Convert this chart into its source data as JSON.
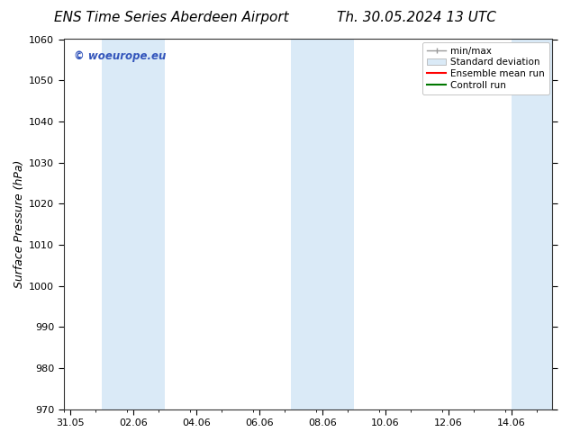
{
  "title_left": "ENS Time Series Aberdeen Airport",
  "title_right": "Th. 30.05.2024 13 UTC",
  "ylabel": "Surface Pressure (hPa)",
  "ylim": [
    970,
    1060
  ],
  "yticks": [
    970,
    980,
    990,
    1000,
    1010,
    1020,
    1030,
    1040,
    1050,
    1060
  ],
  "x_tick_labels": [
    "31.05",
    "02.06",
    "04.06",
    "06.06",
    "08.06",
    "10.06",
    "12.06",
    "14.06"
  ],
  "x_tick_positions": [
    0,
    2,
    4,
    6,
    8,
    10,
    12,
    14
  ],
  "xlim": [
    -0.2,
    15.3
  ],
  "background_color": "#ffffff",
  "plot_bg_color": "#ffffff",
  "shaded_bands": [
    {
      "x_start": 1,
      "x_end": 3,
      "color": "#daeaf7"
    },
    {
      "x_start": 7,
      "x_end": 9,
      "color": "#daeaf7"
    },
    {
      "x_start": 14,
      "x_end": 15.3,
      "color": "#daeaf7"
    }
  ],
  "watermark_text": "© woeurope.eu",
  "watermark_color": "#3355bb",
  "legend_entries": [
    {
      "label": "min/max",
      "type": "minmax"
    },
    {
      "label": "Standard deviation",
      "type": "stddev"
    },
    {
      "label": "Ensemble mean run",
      "type": "line",
      "color": "#ff0000"
    },
    {
      "label": "Controll run",
      "type": "line",
      "color": "#007700"
    }
  ],
  "title_fontsize": 11,
  "axis_label_fontsize": 9,
  "tick_fontsize": 8,
  "legend_fontsize": 7.5,
  "fig_width": 6.34,
  "fig_height": 4.9,
  "dpi": 100
}
